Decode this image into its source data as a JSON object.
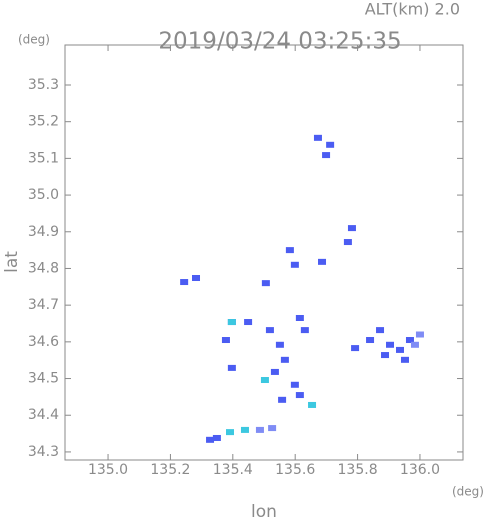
{
  "chart_data": {
    "type": "scatter",
    "title": "2019/03/24 03:25:35",
    "subtitle": "ALT(km) 2.0",
    "x_label": "lon",
    "y_label": "lat",
    "x_unit": "(deg)",
    "y_unit": "(deg)",
    "xlim": [
      134.862,
      136.138
    ],
    "ylim": [
      34.278,
      35.409
    ],
    "xticks": [
      {
        "value": 135,
        "label": "135.0"
      },
      135.2,
      135.4,
      135.6,
      135.8,
      {
        "value": 136,
        "label": "136.0"
      }
    ],
    "yticks": [
      34.3,
      34.4,
      34.5,
      34.6,
      34.7,
      34.8,
      34.9,
      {
        "value": 35,
        "label": "35.0"
      },
      35.1,
      35.2,
      35.3
    ],
    "series": [
      {
        "color": "#4b5cf2",
        "x": [
          135.673,
          135.712,
          135.699,
          135.782,
          135.769,
          135.583,
          135.599,
          135.686,
          135.244,
          135.282,
          135.506,
          135.397,
          135.449,
          135.378,
          135.519,
          135.615,
          135.631,
          135.551,
          135.567,
          135.535,
          135.599,
          135.615,
          135.558,
          135.397,
          135.872,
          135.904,
          135.84,
          135.936,
          135.888,
          135.792,
          135.968,
          135.952,
          135.327,
          135.349
        ],
        "y": [
          35.156,
          35.137,
          35.109,
          34.91,
          34.872,
          34.85,
          34.81,
          34.818,
          34.763,
          34.774,
          34.76,
          34.654,
          34.654,
          34.605,
          34.632,
          34.665,
          34.632,
          34.592,
          34.551,
          34.518,
          34.483,
          34.455,
          34.442,
          34.529,
          34.632,
          34.592,
          34.605,
          34.578,
          34.564,
          34.583,
          34.605,
          34.551,
          34.333,
          34.338
        ]
      },
      {
        "color": "#3cc8e0",
        "x": [
          135.391,
          135.439,
          135.503,
          135.654,
          135.397
        ],
        "y": [
          34.354,
          34.36,
          34.496,
          34.428,
          34.654
        ]
      },
      {
        "color": "#7f8cf5",
        "x": [
          135.487,
          135.526,
          135.984,
          136.0
        ],
        "y": [
          34.36,
          34.365,
          34.592,
          34.62
        ]
      }
    ]
  }
}
